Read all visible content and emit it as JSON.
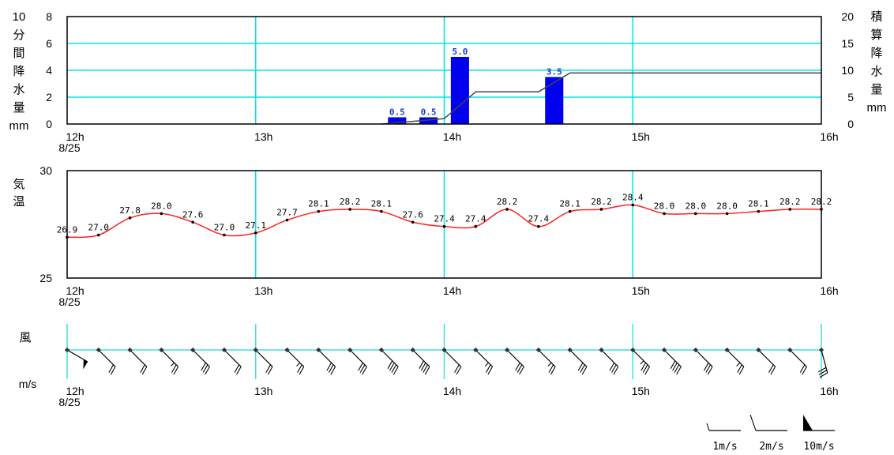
{
  "colors": {
    "grid": "#00e5e5",
    "frame": "#000000",
    "bar": "#0000ee",
    "bar_label": "#1a3ccc",
    "cumulative_line": "#444444",
    "temperature_line": "#ff2020",
    "wind_axis": "#40e0e0"
  },
  "date_label": "8/25",
  "hour_labels": [
    "12h",
    "13h",
    "14h",
    "15h",
    "16h"
  ],
  "chart_data": [
    {
      "type": "bar",
      "ylabel_chars": [
        "10",
        "分",
        "間",
        "降",
        "水",
        "量",
        "mm"
      ],
      "y2label_chars": [
        "積",
        "算",
        "降",
        "水",
        "量",
        "mm"
      ],
      "yticks": [
        "0",
        "2",
        "4",
        "6",
        "8"
      ],
      "y2ticks": [
        "0",
        "5",
        "10",
        "15",
        "20"
      ],
      "ylim": [
        0,
        8
      ],
      "y2lim": [
        0,
        20
      ],
      "xlim": [
        "12:00",
        "16:00"
      ],
      "bars": [
        {
          "x": "13:50",
          "value": 0.5,
          "label": "0.5"
        },
        {
          "x": "14:00",
          "value": 0.5,
          "label": "0.5"
        },
        {
          "x": "14:10",
          "value": 5.0,
          "label": "5.0"
        },
        {
          "x": "14:40",
          "value": 3.5,
          "label": "3.5"
        }
      ],
      "cumulative": {
        "x": [
          "13:40",
          "13:50",
          "14:00",
          "14:10",
          "14:20",
          "14:30",
          "14:40",
          "14:50",
          "16:00"
        ],
        "values": [
          0,
          0.5,
          1.0,
          6.0,
          6.0,
          6.0,
          9.5,
          9.5,
          9.5
        ]
      }
    },
    {
      "type": "line",
      "ylabel_chars": [
        "気",
        "温"
      ],
      "yticks": [
        "25",
        "30"
      ],
      "ylim": [
        25,
        30
      ],
      "xlim": [
        "12:00",
        "16:00"
      ],
      "series": [
        {
          "x": [
            "12:00",
            "12:10",
            "12:20",
            "12:30",
            "12:40",
            "12:50",
            "13:00",
            "13:10",
            "13:20",
            "13:30",
            "13:40",
            "13:50",
            "14:00",
            "14:10",
            "14:20",
            "14:30",
            "14:40",
            "14:50",
            "15:00",
            "15:10",
            "15:20",
            "15:30",
            "15:40",
            "15:50",
            "16:00"
          ],
          "values": [
            26.9,
            27.0,
            27.8,
            28.0,
            27.6,
            27.0,
            27.1,
            27.7,
            28.1,
            28.2,
            28.1,
            27.6,
            27.4,
            27.4,
            28.2,
            27.4,
            28.1,
            28.2,
            28.4,
            28.0,
            28.0,
            28.0,
            28.1,
            28.2,
            28.2
          ],
          "labels": [
            "26.9",
            "27.0",
            "27.8",
            "28.0",
            "27.6",
            "27.0",
            "27.1",
            "27.7",
            "28.1",
            "28.2",
            "28.1",
            "27.6",
            "27.4",
            "27.4",
            "28.2",
            "27.4",
            "28.1",
            "28.2",
            "28.4",
            "28.0",
            "28.0",
            "28.0",
            "28.1",
            "28.2",
            "28.2"
          ]
        }
      ]
    },
    {
      "type": "wind_barbs",
      "ylabel": "風",
      "units_label": "m/s",
      "xlim": [
        "12:00",
        "16:00"
      ],
      "x": [
        "12:00",
        "12:10",
        "12:20",
        "12:30",
        "12:40",
        "12:50",
        "13:00",
        "13:10",
        "13:20",
        "13:30",
        "13:40",
        "13:50",
        "14:00",
        "14:10",
        "14:20",
        "14:30",
        "14:40",
        "14:50",
        "15:00",
        "15:10",
        "15:20",
        "15:30",
        "15:40",
        "15:50",
        "16:00"
      ],
      "from_direction_deg": [
        300,
        315,
        315,
        315,
        315,
        315,
        315,
        315,
        315,
        315,
        315,
        315,
        315,
        315,
        315,
        315,
        315,
        315,
        315,
        315,
        315,
        315,
        315,
        315,
        345
      ],
      "speed_ms": [
        10,
        4,
        4,
        5,
        6,
        4,
        4,
        5,
        6,
        6,
        8,
        8,
        4,
        5,
        6,
        5,
        6,
        6,
        7,
        8,
        6,
        5,
        4,
        4,
        6
      ],
      "legend": [
        {
          "speed": 1,
          "label": "1m/s"
        },
        {
          "speed": 2,
          "label": "2m/s"
        },
        {
          "speed": 10,
          "label": "10m/s"
        }
      ]
    }
  ]
}
